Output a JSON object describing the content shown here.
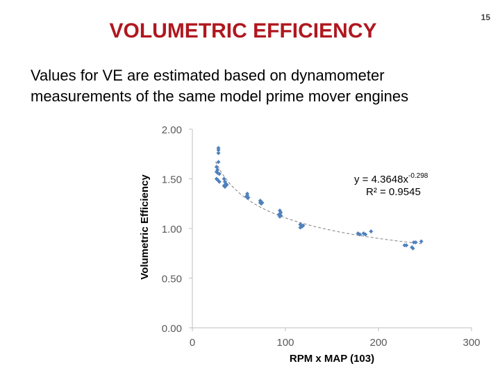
{
  "slide": {
    "title": "VOLUMETRIC EFFICIENCY",
    "page_number": "15",
    "description": "Values for VE are estimated based on dynamometer measurements of the same model prime mover engines"
  },
  "colors": {
    "title": "#b0171f",
    "points": "#4f81bd",
    "trend": "#7f7f7f",
    "axis": "#bfbfbf"
  },
  "chart_data": {
    "type": "scatter",
    "xlabel": "RPM x MAP (103)",
    "ylabel": "Volumetric Efficiency",
    "xlim": [
      0,
      300
    ],
    "ylim": [
      0,
      2.0
    ],
    "xticks": [
      0,
      100,
      200,
      300
    ],
    "yticks": [
      0.0,
      0.5,
      1.0,
      1.5,
      2.0
    ],
    "xtick_labels": [
      "0",
      "100",
      "200",
      "300"
    ],
    "ytick_labels": [
      "0.00",
      "0.50",
      "1.00",
      "1.50",
      "2.00"
    ],
    "gridlines": false,
    "trendline": {
      "type": "power",
      "a": 4.3648,
      "b": -0.298,
      "equation_text": "y = 4.3648x",
      "equation_exponent": "-0.298",
      "r2_text": "R² = 0.9545"
    },
    "points": [
      {
        "x": 28,
        "y": 1.81
      },
      {
        "x": 28,
        "y": 1.79
      },
      {
        "x": 28,
        "y": 1.76
      },
      {
        "x": 28,
        "y": 1.67
      },
      {
        "x": 26,
        "y": 1.62
      },
      {
        "x": 27,
        "y": 1.59
      },
      {
        "x": 26,
        "y": 1.57
      },
      {
        "x": 27,
        "y": 1.56
      },
      {
        "x": 29,
        "y": 1.55
      },
      {
        "x": 26,
        "y": 1.5
      },
      {
        "x": 27,
        "y": 1.49
      },
      {
        "x": 29,
        "y": 1.47
      },
      {
        "x": 34,
        "y": 1.5
      },
      {
        "x": 35,
        "y": 1.47
      },
      {
        "x": 36,
        "y": 1.45
      },
      {
        "x": 34,
        "y": 1.43
      },
      {
        "x": 35,
        "y": 1.42
      },
      {
        "x": 37,
        "y": 1.44
      },
      {
        "x": 59,
        "y": 1.35
      },
      {
        "x": 59,
        "y": 1.33
      },
      {
        "x": 60,
        "y": 1.31
      },
      {
        "x": 58,
        "y": 1.32
      },
      {
        "x": 73,
        "y": 1.28
      },
      {
        "x": 73,
        "y": 1.26
      },
      {
        "x": 74,
        "y": 1.25
      },
      {
        "x": 75,
        "y": 1.26
      },
      {
        "x": 94,
        "y": 1.18
      },
      {
        "x": 95,
        "y": 1.16
      },
      {
        "x": 93,
        "y": 1.14
      },
      {
        "x": 94,
        "y": 1.12
      },
      {
        "x": 95,
        "y": 1.13
      },
      {
        "x": 116,
        "y": 1.04
      },
      {
        "x": 117,
        "y": 1.03
      },
      {
        "x": 118,
        "y": 1.02
      },
      {
        "x": 116,
        "y": 1.01
      },
      {
        "x": 119,
        "y": 1.03
      },
      {
        "x": 178,
        "y": 0.95
      },
      {
        "x": 180,
        "y": 0.94
      },
      {
        "x": 184,
        "y": 0.95
      },
      {
        "x": 186,
        "y": 0.94
      },
      {
        "x": 192,
        "y": 0.97
      },
      {
        "x": 228,
        "y": 0.83
      },
      {
        "x": 230,
        "y": 0.83
      },
      {
        "x": 236,
        "y": 0.81
      },
      {
        "x": 237,
        "y": 0.8
      },
      {
        "x": 238,
        "y": 0.86
      },
      {
        "x": 240,
        "y": 0.86
      },
      {
        "x": 246,
        "y": 0.87
      }
    ]
  }
}
